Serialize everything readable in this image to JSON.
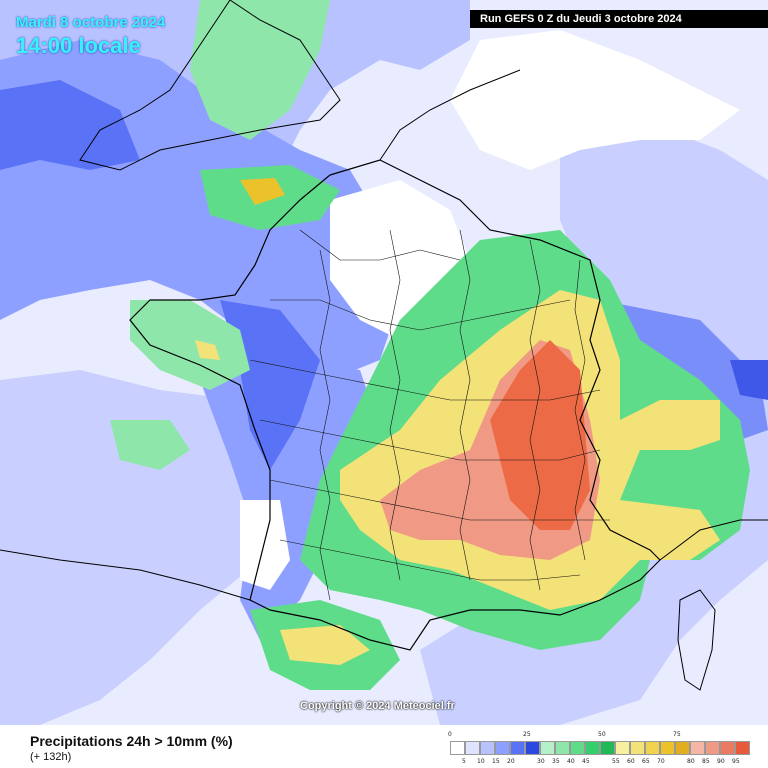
{
  "header": {
    "date": "Mardi 8 octobre 2024",
    "time": "14:00 locale",
    "run": "Run GEFS 0 Z du Jeudi 3 octobre 2024"
  },
  "copyright": "Copyright © 2024 Meteociel.fr",
  "footer": {
    "title": "Precipitations 24h > 10mm (%)",
    "subtitle": "(+ 132h)"
  },
  "legend": {
    "major_labels": [
      "0",
      "25",
      "50",
      "75"
    ],
    "minor_labels": [
      "5",
      "10",
      "15",
      "20",
      "",
      "30",
      "35",
      "40",
      "45",
      "",
      "55",
      "60",
      "65",
      "70",
      "",
      "80",
      "85",
      "90",
      "95"
    ],
    "colors": [
      "#ffffff",
      "#dfe3ff",
      "#b7c2ff",
      "#8ea0ff",
      "#5a72f5",
      "#2b48e0",
      "#b6f0c8",
      "#8ee6aa",
      "#5fdc8a",
      "#33cf6c",
      "#20b955",
      "#f7f0a0",
      "#f3e277",
      "#efd24e",
      "#ecc22a",
      "#e0ae20",
      "#f5b7a5",
      "#f09a85",
      "#ec7a60",
      "#e85a3a"
    ]
  }
}
